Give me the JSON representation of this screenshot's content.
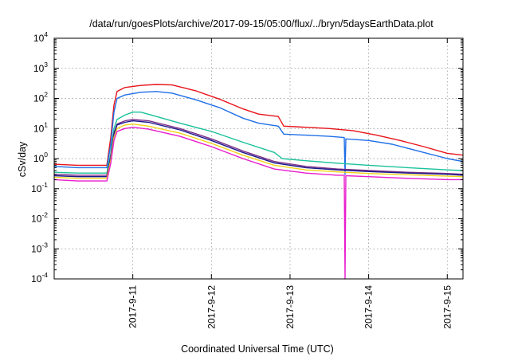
{
  "chart_data": {
    "type": "line",
    "title": "/data/run/goesPlots/archive/2017-09-15/05:00/flux/../bryn/5daysEarthData.plot",
    "xlabel": "Coordinated Universal Time (UTC)",
    "ylabel": "cSv/day",
    "yscale": "log",
    "grid": true,
    "xlim": [
      0.0,
      5.2
    ],
    "ylim_exponents": [
      -4,
      4
    ],
    "x_tick_labels": [
      "2017-9-11",
      "2017-9-12",
      "2017-9-13",
      "2017-9-14",
      "2017-9-15"
    ],
    "x_tick_values": [
      1,
      2,
      3,
      4,
      5
    ],
    "y_tick_mantissa": "10",
    "y_tick_exponents": [
      "-4",
      "-3",
      "-2",
      "-1",
      "0",
      "1",
      "2",
      "3",
      "4"
    ],
    "x_unit_note": "days after 2017-9-10 00:00 UTC",
    "series": [
      {
        "color": "#e8131a",
        "x": [
          0.0,
          0.3,
          0.67,
          0.72,
          0.76,
          0.8,
          0.9,
          1.1,
          1.3,
          1.5,
          1.8,
          2.1,
          2.4,
          2.6,
          2.85,
          2.92,
          3.2,
          3.5,
          3.8,
          4.1,
          4.4,
          4.7,
          5.0,
          5.2
        ],
        "y": [
          0.65,
          0.6,
          0.6,
          5,
          60,
          170,
          230,
          270,
          290,
          280,
          180,
          95,
          45,
          30,
          25,
          12,
          11,
          10,
          8.5,
          6,
          4,
          2.5,
          1.5,
          1.3
        ]
      },
      {
        "color": "#1f6fe8",
        "x": [
          0.0,
          0.3,
          0.67,
          0.72,
          0.76,
          0.8,
          0.9,
          1.1,
          1.3,
          1.5,
          1.8,
          2.1,
          2.4,
          2.6,
          2.85,
          2.92,
          3.2,
          3.5,
          3.69,
          3.7,
          3.71,
          4.0,
          4.3,
          4.7,
          5.0,
          5.2
        ],
        "y": [
          0.55,
          0.5,
          0.5,
          3,
          35,
          100,
          130,
          160,
          170,
          150,
          90,
          50,
          22,
          15,
          12,
          6.5,
          6,
          5.5,
          5,
          0.3,
          4.5,
          4,
          3,
          1.6,
          1,
          0.8
        ]
      },
      {
        "color": "#19c19a",
        "x": [
          0.0,
          0.3,
          0.67,
          0.72,
          0.76,
          0.8,
          0.9,
          1.0,
          1.1,
          1.3,
          1.6,
          2.0,
          2.4,
          2.8,
          2.9,
          3.2,
          3.6,
          4.0,
          4.5,
          5.0,
          5.2
        ],
        "y": [
          0.35,
          0.33,
          0.33,
          1.5,
          10,
          20,
          28,
          35,
          35,
          25,
          15,
          8,
          3.5,
          1.6,
          1,
          0.85,
          0.7,
          0.6,
          0.5,
          0.42,
          0.4
        ]
      },
      {
        "color": "#7b2d8a",
        "x": [
          0.0,
          0.3,
          0.67,
          0.72,
          0.76,
          0.8,
          0.9,
          1.0,
          1.2,
          1.6,
          2.0,
          2.4,
          2.8,
          3.2,
          3.6,
          4.0,
          4.5,
          5.0,
          5.2
        ],
        "y": [
          0.3,
          0.28,
          0.28,
          1.2,
          7,
          14,
          18,
          20,
          18,
          10,
          4.5,
          1.8,
          0.8,
          0.55,
          0.45,
          0.4,
          0.35,
          0.32,
          0.3
        ]
      },
      {
        "color": "#1a1a8a",
        "x": [
          0.0,
          0.3,
          0.67,
          0.72,
          0.76,
          0.8,
          0.9,
          1.0,
          1.2,
          1.6,
          2.0,
          2.4,
          2.8,
          3.2,
          3.6,
          4.0,
          4.5,
          5.0,
          5.2
        ],
        "y": [
          0.27,
          0.25,
          0.25,
          1.1,
          6.5,
          13,
          16,
          18,
          16,
          9,
          4,
          1.6,
          0.72,
          0.5,
          0.42,
          0.37,
          0.33,
          0.3,
          0.28
        ]
      },
      {
        "color": "#f2d21a",
        "x": [
          0.0,
          0.3,
          0.67,
          0.72,
          0.76,
          0.8,
          0.9,
          1.0,
          1.2,
          1.6,
          2.0,
          2.4,
          2.8,
          3.2,
          3.6,
          4.0,
          4.5,
          5.0,
          5.2
        ],
        "y": [
          0.24,
          0.22,
          0.22,
          0.9,
          5,
          10,
          13,
          14,
          12,
          7,
          3.2,
          1.3,
          0.6,
          0.42,
          0.36,
          0.32,
          0.29,
          0.26,
          0.25
        ]
      },
      {
        "color": "#e81ccd",
        "x": [
          0.0,
          0.3,
          0.67,
          0.72,
          0.76,
          0.8,
          0.9,
          1.0,
          1.2,
          1.6,
          2.0,
          2.4,
          2.8,
          3.2,
          3.6,
          3.69,
          3.7,
          3.71,
          4.0,
          4.5,
          5.0,
          5.2
        ],
        "y": [
          0.2,
          0.18,
          0.18,
          0.7,
          4,
          8,
          10,
          11,
          9.5,
          5.5,
          2.5,
          1,
          0.45,
          0.33,
          0.28,
          0.28,
          0.0001,
          0.27,
          0.25,
          0.22,
          0.2,
          0.2
        ]
      }
    ]
  }
}
